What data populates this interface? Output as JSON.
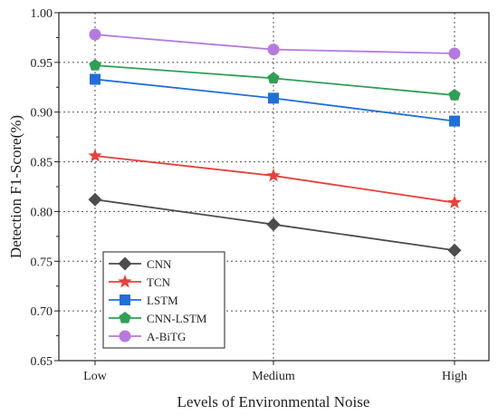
{
  "chart_data": {
    "type": "line",
    "title": "",
    "xlabel": "Levels of Environmental Noise",
    "ylabel": "Detection F1-Score(%)",
    "categories": [
      "Low",
      "Medium",
      "High"
    ],
    "ylim": [
      0.65,
      1.0
    ],
    "yticks": [
      "0.65",
      "0.70",
      "0.75",
      "0.80",
      "0.85",
      "0.90",
      "0.95",
      "1.00"
    ],
    "grid": true,
    "legend_position": "bottom-left",
    "series": [
      {
        "name": "CNN",
        "values": [
          0.812,
          0.787,
          0.761
        ],
        "color": "#4d4d4d",
        "marker": "diamond"
      },
      {
        "name": "TCN",
        "values": [
          0.856,
          0.836,
          0.809
        ],
        "color": "#e8413c",
        "marker": "star"
      },
      {
        "name": "LSTM",
        "values": [
          0.933,
          0.914,
          0.891
        ],
        "color": "#1f6fd9",
        "marker": "square"
      },
      {
        "name": "CNN-LSTM",
        "values": [
          0.947,
          0.934,
          0.917
        ],
        "color": "#2ea055",
        "marker": "pentagon"
      },
      {
        "name": "A-BiTG",
        "values": [
          0.978,
          0.963,
          0.959
        ],
        "color": "#b57ae0",
        "marker": "circle"
      }
    ]
  }
}
